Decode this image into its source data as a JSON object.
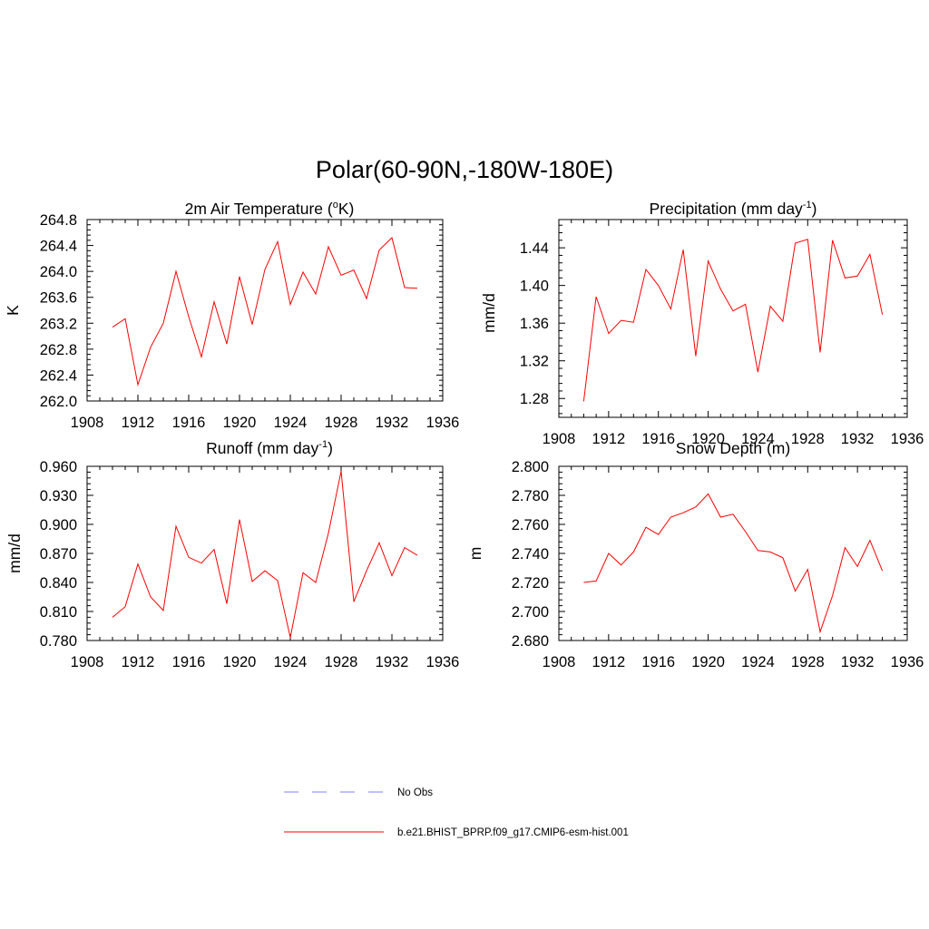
{
  "figure": {
    "title": "Polar(60-90N,-180W-180E)"
  },
  "colors": {
    "model_line": "#ff0000",
    "obs_line": "#9999ff",
    "axis": "#000000"
  },
  "legend": {
    "placement": "bottom-center",
    "entries": [
      {
        "label": "No Obs",
        "style": "dashed",
        "color": "#9999ff"
      },
      {
        "label": "b.e21.BHIST_BPRP.f09_g17.CMIP6-esm-hist.001",
        "style": "solid",
        "color": "#ff0000"
      }
    ]
  },
  "chart_data": [
    {
      "type": "line",
      "title": "2m Air Temperature (",
      "title_sup": "o",
      "title_after": "K)",
      "ylabel": "K",
      "xlim": [
        1908,
        1936
      ],
      "ylim": [
        262.0,
        264.8
      ],
      "xticks": [
        "1908",
        "1912",
        "1916",
        "1920",
        "1924",
        "1928",
        "1932",
        "1936"
      ],
      "yticks": [
        "262.0",
        "262.4",
        "262.8",
        "263.2",
        "263.6",
        "264.0",
        "264.4",
        "264.8"
      ],
      "x": [
        1910,
        1911,
        1912,
        1913,
        1914,
        1915,
        1916,
        1917,
        1918,
        1919,
        1920,
        1921,
        1922,
        1923,
        1924,
        1925,
        1926,
        1927,
        1928,
        1929,
        1930,
        1931,
        1932,
        1933,
        1934
      ],
      "series": [
        {
          "values": [
            263.14,
            263.27,
            262.25,
            262.83,
            263.2,
            264.0,
            263.3,
            262.68,
            263.53,
            262.88,
            263.92,
            263.18,
            264.03,
            264.46,
            263.49,
            263.99,
            263.65,
            264.38,
            263.94,
            264.02,
            263.58,
            264.33,
            264.52,
            263.75,
            263.74
          ]
        }
      ]
    },
    {
      "type": "line",
      "title": "Precipitation (mm day",
      "title_sup": "-1",
      "title_after": ")",
      "ylabel": "mm/d",
      "xlim": [
        1908,
        1936
      ],
      "ylim": [
        1.26,
        1.47
      ],
      "xticks": [
        "1908",
        "1912",
        "1916",
        "1920",
        "1924",
        "1928",
        "1932",
        "1936"
      ],
      "yticks": [
        "1.28",
        "1.32",
        "1.36",
        "1.40",
        "1.44"
      ],
      "ytick_values": [
        1.28,
        1.32,
        1.36,
        1.4,
        1.44
      ],
      "x": [
        1910,
        1911,
        1912,
        1913,
        1914,
        1915,
        1916,
        1917,
        1918,
        1919,
        1920,
        1921,
        1922,
        1923,
        1924,
        1925,
        1926,
        1927,
        1928,
        1929,
        1930,
        1931,
        1932,
        1933,
        1934
      ],
      "series": [
        {
          "values": [
            1.277,
            1.388,
            1.349,
            1.363,
            1.361,
            1.417,
            1.4,
            1.375,
            1.438,
            1.325,
            1.426,
            1.396,
            1.373,
            1.38,
            1.308,
            1.378,
            1.362,
            1.445,
            1.449,
            1.329,
            1.448,
            1.408,
            1.41,
            1.433,
            1.369
          ]
        }
      ]
    },
    {
      "type": "line",
      "title": "Runoff (mm day",
      "title_sup": "-1",
      "title_after": ")",
      "ylabel": "mm/d",
      "xlim": [
        1908,
        1936
      ],
      "ylim": [
        0.78,
        0.96
      ],
      "xticks": [
        "1908",
        "1912",
        "1916",
        "1920",
        "1924",
        "1928",
        "1932",
        "1936"
      ],
      "yticks": [
        "0.780",
        "0.810",
        "0.840",
        "0.870",
        "0.900",
        "0.930",
        "0.960"
      ],
      "x": [
        1910,
        1911,
        1912,
        1913,
        1914,
        1915,
        1916,
        1917,
        1918,
        1919,
        1920,
        1921,
        1922,
        1923,
        1924,
        1925,
        1926,
        1927,
        1928,
        1929,
        1930,
        1931,
        1932,
        1933,
        1934
      ],
      "series": [
        {
          "values": [
            0.804,
            0.815,
            0.859,
            0.825,
            0.811,
            0.898,
            0.866,
            0.86,
            0.874,
            0.818,
            0.905,
            0.841,
            0.852,
            0.842,
            0.783,
            0.85,
            0.84,
            0.891,
            0.955,
            0.82,
            0.852,
            0.881,
            0.847,
            0.876,
            0.868
          ]
        }
      ]
    },
    {
      "type": "line",
      "title": "Snow Depth (m)",
      "title_sup": "",
      "title_after": "",
      "ylabel": "m",
      "xlim": [
        1908,
        1936
      ],
      "ylim": [
        2.68,
        2.8
      ],
      "xticks": [
        "1908",
        "1912",
        "1916",
        "1920",
        "1924",
        "1928",
        "1932",
        "1936"
      ],
      "yticks": [
        "2.680",
        "2.700",
        "2.720",
        "2.740",
        "2.760",
        "2.780",
        "2.800"
      ],
      "x": [
        1910,
        1911,
        1912,
        1913,
        1914,
        1915,
        1916,
        1917,
        1918,
        1919,
        1920,
        1921,
        1922,
        1923,
        1924,
        1925,
        1926,
        1927,
        1928,
        1929,
        1930,
        1931,
        1932,
        1933,
        1934
      ],
      "series": [
        {
          "values": [
            2.72,
            2.721,
            2.74,
            2.732,
            2.741,
            2.758,
            2.753,
            2.765,
            2.768,
            2.772,
            2.781,
            2.765,
            2.767,
            2.755,
            2.742,
            2.741,
            2.737,
            2.714,
            2.729,
            2.686,
            2.711,
            2.744,
            2.731,
            2.749,
            2.728
          ]
        }
      ]
    }
  ]
}
